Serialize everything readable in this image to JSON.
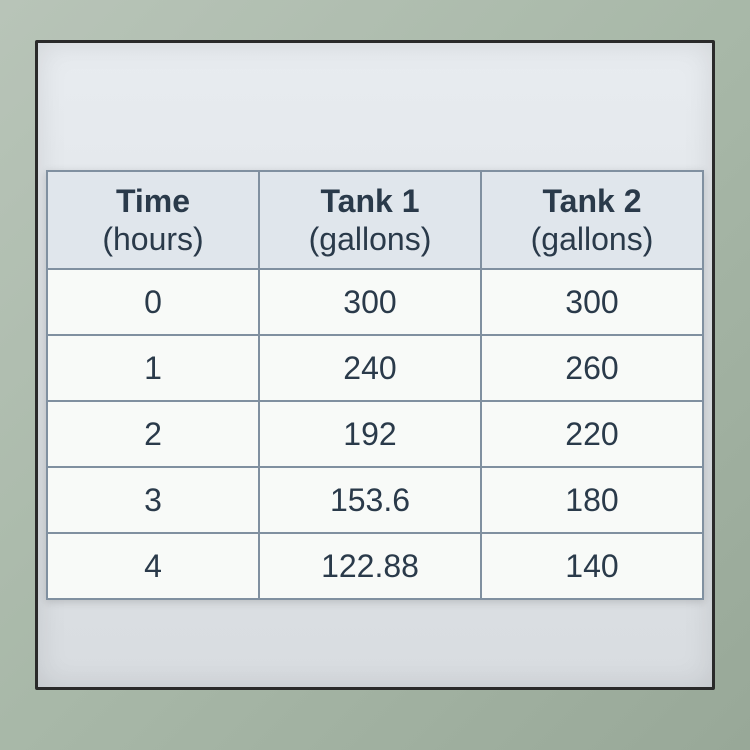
{
  "partial_header": "",
  "table": {
    "columns": [
      {
        "main": "Time",
        "sub": "(hours)"
      },
      {
        "main": "Tank 1",
        "sub": "(gallons)"
      },
      {
        "main": "Tank 2",
        "sub": "(gallons)"
      }
    ],
    "rows": [
      [
        "0",
        "300",
        "300"
      ],
      [
        "1",
        "240",
        "260"
      ],
      [
        "2",
        "192",
        "220"
      ],
      [
        "3",
        "153.6",
        "180"
      ],
      [
        "4",
        "122.88",
        "140"
      ]
    ],
    "header_bg": "#e0e6ec",
    "cell_bg": "#f8faf8",
    "border_color": "#8090a0",
    "text_color": "#2a3a4a",
    "font_size": 32
  },
  "background_color": "#a8b8a8"
}
